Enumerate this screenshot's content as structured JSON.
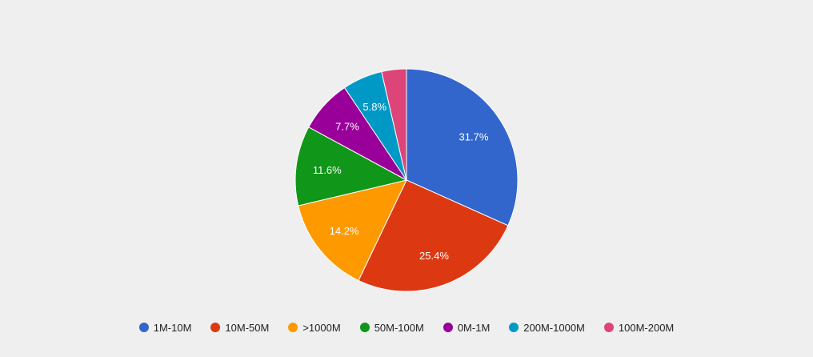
{
  "chart_data": {
    "type": "pie",
    "categories": [
      "1M-10M",
      "10M-50M",
      ">1000M",
      "50M-100M",
      "0M-1M",
      "200M-1000M",
      "100M-200M"
    ],
    "values": [
      31.7,
      25.4,
      14.2,
      11.6,
      7.7,
      5.8,
      3.6
    ],
    "data_labels": [
      "31.7%",
      "25.4%",
      "14.2%",
      "11.6%",
      "7.7%",
      "5.8%",
      ""
    ],
    "colors": [
      "#3366cc",
      "#dc3912",
      "#ff9900",
      "#109618",
      "#990099",
      "#0099c6",
      "#dd4477"
    ],
    "legend_position": "bottom",
    "start_angle": "top, clockwise"
  }
}
